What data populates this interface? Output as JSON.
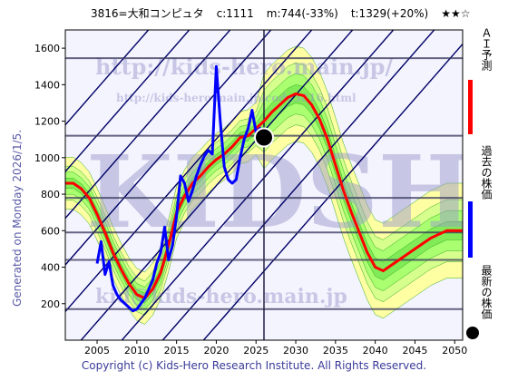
{
  "header": {
    "code": "3816=大和コンピュタ",
    "current": "c:1111",
    "min": "m:744(-33%)",
    "target": "t:1329(+20%)",
    "stars": "★★☆"
  },
  "side_text": "Generated on Monday 2026/1/5.",
  "watermarks": [
    "http://kids-hero.main.jp/",
    "http://kids-hero.main.jp/code3816.html",
    "KIDSHERO",
    "kid@kids-hero.main.jp"
  ],
  "footer": "Copyright (c) Kids-Hero Research Institute. All Rights Reserved.",
  "legend": [
    {
      "label": "ＡＩ予測",
      "color": "#ff0000"
    },
    {
      "label": "過去の株価",
      "color": "#0000ff"
    },
    {
      "label": "最新の株価",
      "color": "#000000"
    }
  ],
  "colors": {
    "prediction": "#ff0000",
    "history": "#0000ff",
    "band_outer": "#ffff99",
    "band_inner": "#99ff66",
    "lines": "#000066"
  },
  "chart_data": {
    "type": "line",
    "xlim": [
      2001,
      2051
    ],
    "ylim": [
      0,
      1700
    ],
    "xticks": [
      2005,
      2010,
      2015,
      2020,
      2025,
      2030,
      2035,
      2040,
      2045,
      2050
    ],
    "yticks": [
      0,
      200,
      400,
      600,
      800,
      1000,
      1200,
      1400,
      1600
    ],
    "hlines": [
      1545,
      1120,
      780,
      590,
      440,
      170
    ],
    "vline_x": 2026.0,
    "latest_point": {
      "x": 2026.0,
      "y": 1111
    },
    "series": [
      {
        "name": "ＡＩ予測",
        "x": [
          2001,
          2002,
          2003,
          2004,
          2005,
          2006,
          2007,
          2008,
          2009,
          2010,
          2011,
          2012,
          2013,
          2014,
          2015,
          2016,
          2017,
          2018,
          2019,
          2020,
          2021,
          2022,
          2023,
          2024,
          2025,
          2026,
          2027,
          2028,
          2029,
          2030,
          2031,
          2032,
          2033,
          2034,
          2035,
          2036,
          2037,
          2038,
          2039,
          2040,
          2041,
          2042,
          2043,
          2044,
          2045,
          2046,
          2047,
          2048,
          2049,
          2050,
          2051
        ],
        "values": [
          860,
          860,
          830,
          780,
          690,
          590,
          480,
          390,
          310,
          250,
          230,
          280,
          370,
          520,
          700,
          790,
          860,
          900,
          950,
          990,
          1020,
          1060,
          1110,
          1120,
          1160,
          1200,
          1250,
          1290,
          1330,
          1350,
          1340,
          1290,
          1210,
          1100,
          960,
          820,
          700,
          590,
          480,
          400,
          380,
          410,
          440,
          470,
          500,
          530,
          560,
          580,
          600,
          600,
          600
        ]
      },
      {
        "name": "history",
        "x": [
          2005.0,
          2005.5,
          2006.0,
          2006.5,
          2007.0,
          2007.5,
          2008.0,
          2008.5,
          2009.0,
          2009.5,
          2010.0,
          2010.5,
          2011.0,
          2011.5,
          2012.0,
          2012.5,
          2013.0,
          2013.5,
          2014.0,
          2014.5,
          2015.0,
          2015.5,
          2016.0,
          2016.5,
          2017.0,
          2017.5,
          2018.0,
          2018.5,
          2019.0,
          2019.5,
          2020.0,
          2020.5,
          2021.0,
          2021.5,
          2022.0,
          2022.5,
          2023.0,
          2023.5,
          2024.0,
          2024.5,
          2025.0,
          2025.5,
          2026.0
        ],
        "values": [
          420,
          540,
          360,
          430,
          300,
          250,
          220,
          200,
          180,
          160,
          170,
          200,
          230,
          280,
          330,
          420,
          480,
          620,
          440,
          520,
          680,
          900,
          860,
          760,
          820,
          900,
          960,
          1010,
          1040,
          1020,
          1500,
          1200,
          950,
          880,
          860,
          880,
          1000,
          1100,
          1160,
          1260,
          1140,
          1160,
          1111
        ]
      }
    ]
  }
}
